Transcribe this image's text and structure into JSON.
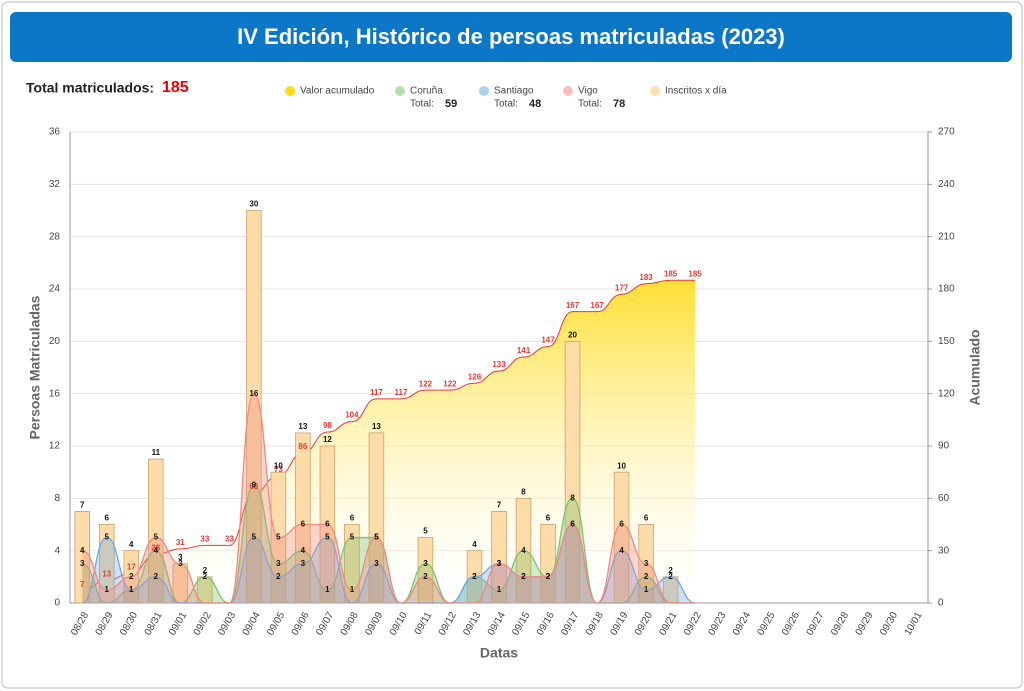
{
  "header": {
    "title": "IV Edición, Histórico de persoas matriculadas (2023)",
    "total_label": "Total matriculados:",
    "total": 185
  },
  "chart_data": {
    "type": "combo",
    "categories": [
      "08/28",
      "08/29",
      "08/30",
      "08/31",
      "09/01",
      "09/02",
      "09/03",
      "09/04",
      "09/05",
      "09/06",
      "09/07",
      "09/08",
      "09/09",
      "09/10",
      "09/11",
      "09/12",
      "09/13",
      "09/14",
      "09/15",
      "09/16",
      "09/17",
      "09/18",
      "09/19",
      "09/20",
      "09/21",
      "09/22",
      "09/23",
      "09/24",
      "09/25",
      "09/26",
      "09/27",
      "09/28",
      "09/29",
      "09/30",
      "10/01"
    ],
    "xlabel": "Datas",
    "ylabel": "Persoas Matriculadas",
    "y2label": "Acumulado",
    "ylim": [
      0,
      36
    ],
    "yticks": [
      0,
      4,
      8,
      12,
      16,
      20,
      24,
      28,
      32,
      36
    ],
    "y2lim": [
      0,
      270
    ],
    "y2ticks": [
      0,
      30,
      60,
      90,
      120,
      150,
      180,
      210,
      240,
      270
    ],
    "grid": true,
    "series": [
      {
        "name": "Valor acumulado",
        "kind": "line",
        "axis": "y2",
        "color": "#ffd700",
        "line_color": "#e53935",
        "values": [
          7,
          13,
          17,
          28,
          31,
          33,
          33,
          63,
          73,
          86,
          98,
          104,
          117,
          117,
          122,
          122,
          126,
          133,
          141,
          147,
          167,
          167,
          177,
          183,
          185,
          185,
          null,
          null,
          null,
          null,
          null,
          null,
          null,
          null,
          null
        ]
      },
      {
        "name": "Coruña",
        "kind": "area",
        "color": "#7cc46a",
        "total_label": "Total:",
        "total": 59,
        "values": [
          3,
          0,
          1,
          4,
          0,
          2,
          0,
          9,
          3,
          4,
          1,
          5,
          5,
          0,
          3,
          0,
          2,
          1,
          4,
          2,
          8,
          0,
          0,
          2,
          0,
          0,
          null,
          null,
          null,
          null,
          null,
          null,
          null,
          null,
          null
        ]
      },
      {
        "name": "Santiago",
        "kind": "area",
        "color": "#6fa8e8",
        "total_label": "Total:",
        "total": 48,
        "values": [
          0,
          5,
          1,
          2,
          0,
          0,
          0,
          5,
          2,
          3,
          5,
          0,
          3,
          0,
          0,
          0,
          2,
          3,
          2,
          2,
          6,
          0,
          4,
          1,
          2,
          0,
          null,
          null,
          null,
          null,
          null,
          null,
          null,
          null,
          null
        ]
      },
      {
        "name": "Vigo",
        "kind": "area",
        "color": "#ef8a80",
        "total_label": "Total:",
        "total": 78,
        "values": [
          4,
          1,
          2,
          5,
          3,
          0,
          0,
          16,
          5,
          6,
          6,
          1,
          5,
          0,
          2,
          0,
          0,
          3,
          2,
          2,
          6,
          0,
          6,
          3,
          0,
          0,
          null,
          null,
          null,
          null,
          null,
          null,
          null,
          null,
          null
        ]
      },
      {
        "name": "Inscritos x día",
        "kind": "bar",
        "color": "#fddcaa",
        "values": [
          7,
          6,
          4,
          11,
          3,
          2,
          0,
          30,
          10,
          13,
          12,
          6,
          13,
          0,
          5,
          0,
          4,
          7,
          8,
          6,
          20,
          0,
          10,
          6,
          2,
          0,
          null,
          null,
          null,
          null,
          null,
          null,
          null,
          null,
          null
        ]
      }
    ]
  }
}
